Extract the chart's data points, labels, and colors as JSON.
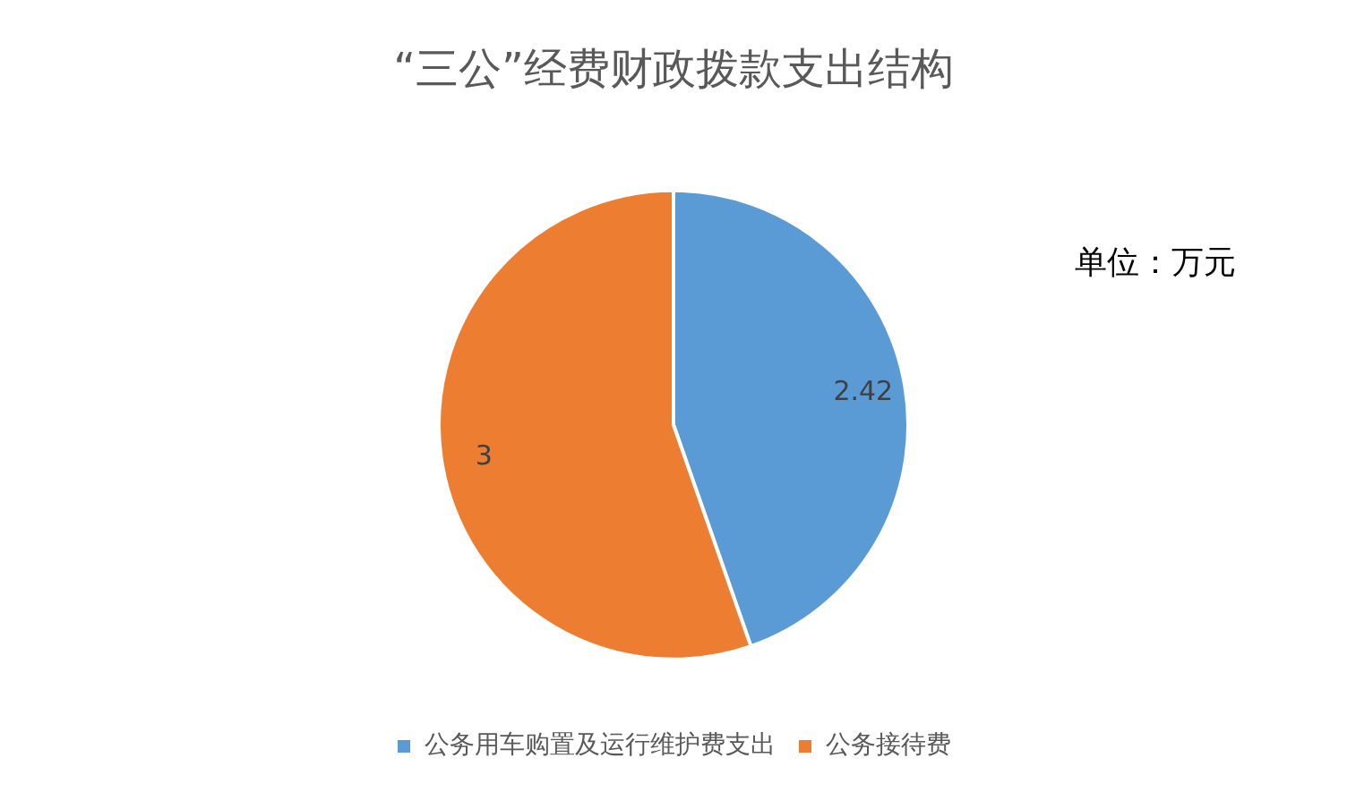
{
  "chart_data": {
    "type": "pie",
    "title": "“三公”经费财政拨款支出结构",
    "annotations": [
      "单位：万元"
    ],
    "categories": [
      "公务用车购置及运行维护费支出",
      "公务接待费"
    ],
    "values": [
      2.42,
      3
    ],
    "colors": [
      "#5b9bd5",
      "#ed7d31"
    ],
    "data_labels": true,
    "legend": "bottom"
  }
}
